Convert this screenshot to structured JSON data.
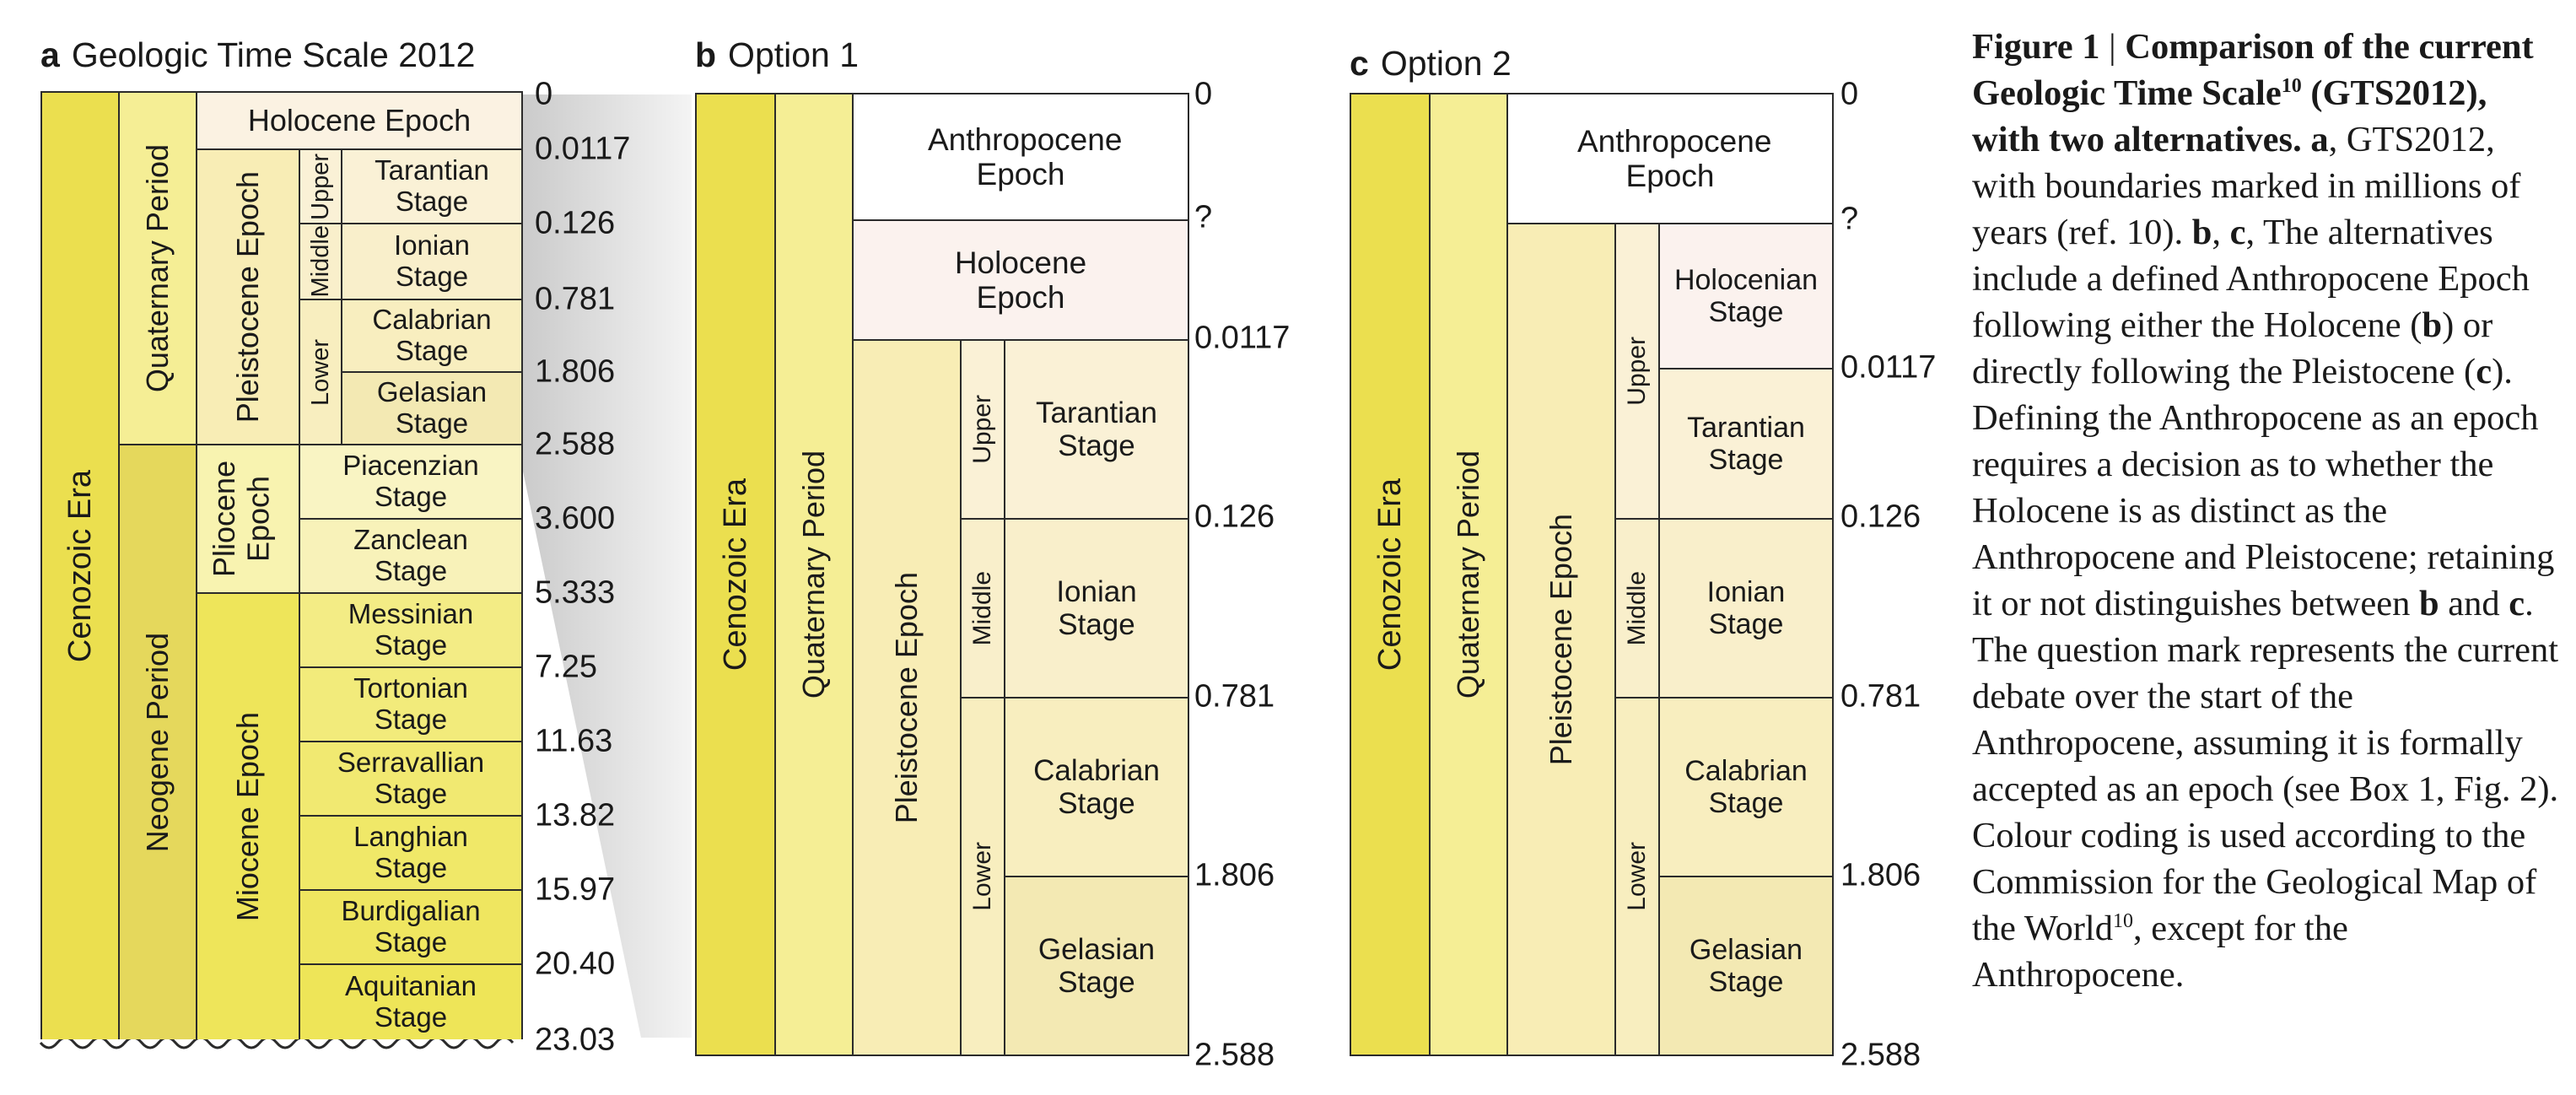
{
  "panels": [
    {
      "letter": "a",
      "title": "Geologic Time Scale 2012",
      "ticks": [
        "0",
        "0.0117",
        "0.126",
        "0.781",
        "1.806",
        "2.588",
        "3.600",
        "5.333",
        "7.25",
        "11.63",
        "13.82",
        "15.97",
        "20.40",
        "23.03"
      ],
      "era": "Cenozoic Era",
      "periods": [
        "Quaternary Period",
        "Neogene Period"
      ],
      "epochs": [
        "Holocene Epoch",
        "Pleistocene Epoch",
        "Pliocene Epoch",
        "Miocene Epoch"
      ],
      "subseries": [
        "Upper",
        "Middle",
        "Lower"
      ],
      "stages": [
        "Tarantian Stage",
        "Ionian Stage",
        "Calabrian Stage",
        "Gelasian Stage",
        "Piacenzian Stage",
        "Zanclean Stage",
        "Messinian Stage",
        "Tortonian Stage",
        "Serravallian Stage",
        "Langhian Stage",
        "Burdigalian Stage",
        "Aquitanian Stage"
      ]
    },
    {
      "letter": "b",
      "title": "Option 1",
      "ticks": [
        "0",
        "?",
        "0.0117",
        "0.126",
        "0.781",
        "1.806",
        "2.588"
      ],
      "era": "Cenozoic Era",
      "period": "Quaternary Period",
      "epochs": [
        "Anthropocene Epoch",
        "Holocene Epoch",
        "Pleistocene Epoch"
      ],
      "subseries": [
        "Upper",
        "Middle",
        "Lower"
      ],
      "stages": [
        "Tarantian Stage",
        "Ionian Stage",
        "Calabrian Stage",
        "Gelasian Stage"
      ]
    },
    {
      "letter": "c",
      "title": "Option 2",
      "ticks": [
        "0",
        "?",
        "0.0117",
        "0.126",
        "0.781",
        "1.806",
        "2.588"
      ],
      "era": "Cenozoic Era",
      "period": "Quaternary Period",
      "epochs": [
        "Anthropocene Epoch",
        "Pleistocene Epoch"
      ],
      "subseries": [
        "Upper",
        "Middle",
        "Lower"
      ],
      "stages": [
        "Holocenian Stage",
        "Tarantian Stage",
        "Ionian Stage",
        "Calabrian Stage",
        "Gelasian Stage"
      ]
    }
  ],
  "caption": {
    "heading_part1": "Figure 1",
    "heading_part2": "Comparison of the current Geologic Time Scale",
    "heading_sup": "10",
    "heading_part3": "(GTS2012), with two alternatives.",
    "a_label": "a",
    "a_text": ", GTS2012, with boundaries marked in millions of years (ref. 10). ",
    "b_label": "b",
    "sep": ", ",
    "c_label": "c",
    "bc_text": ", The alternatives include a defined Anthropocene Epoch following either the Holocene (",
    "b_ref": "b",
    "mid_text": ") or directly following the Pleistocene (",
    "c_ref": "c",
    "end1": "). Defining the Anthropocene as an epoch requires a decision as to whether the Holocene is as distinct as the Anthropocene and Pleistocene; retaining it or not distinguishes between ",
    "b_ref2": "b",
    "and_text": " and ",
    "c_ref2": "c",
    "end2": ". The question mark represents the current debate over the start of the Anthropocene, assuming it is formally accepted as an epoch (see Box 1, Fig. 2). Colour coding is used according to the Commission for the Geological Map of the World",
    "end_sup": "10",
    "end3": ", except for the Anthropocene."
  },
  "colors": {
    "cenozoic": "#F2F91D",
    "quaternary": "#F9F97F",
    "neogene": "#FFE619",
    "holocene": "#FEF2E0",
    "pleistocene": "#FFF2AE",
    "pliocene": "#FFFF99",
    "miocene": "#FFFF00",
    "anthropocene": "#FFFFFF",
    "upper_pleistocene": "#FFF2D3",
    "middle_pleistocene": "#FFF2C7",
    "lower_pleistocene": "#FFF2BA",
    "tarantian": "#FFF2D3",
    "ionian": "#FFF2C7",
    "calabrian": "#FFF2BA",
    "gelasian": "#FFEDB3",
    "piacenzian": "#FFFFBF",
    "zanclean": "#FFFFB3",
    "messinian": "#FFFF73",
    "tortonian": "#FFFF66",
    "serravallian": "#FFFF59",
    "langhian": "#FFFF4D",
    "burdigalian": "#FFFF41",
    "aquitanian": "#FFFF33"
  }
}
